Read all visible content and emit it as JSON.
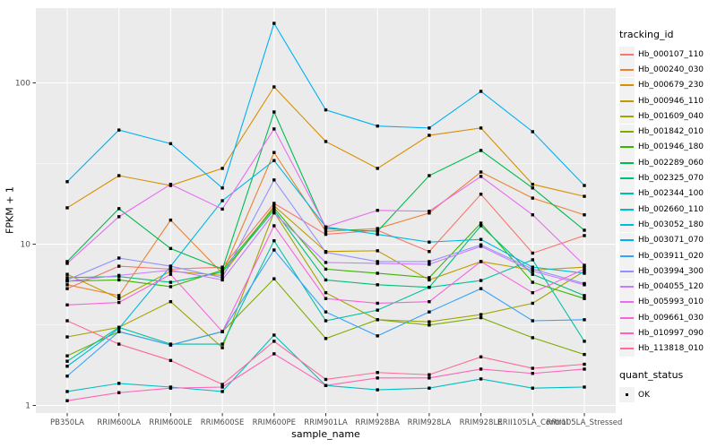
{
  "figure": {
    "background": "#FFFFFF",
    "panel_background": "#EBEBEB",
    "grid_color": "#FFFFFF",
    "tick_color": "#333333",
    "tick_label_color": "#4D4D4D"
  },
  "chart_data": {
    "type": "line",
    "title": "",
    "xlabel": "sample_name",
    "ylabel": "FPKM + 1",
    "y_scale": "log10",
    "ylim": [
      0.9,
      310
    ],
    "y_ticks": [
      1,
      10,
      100
    ],
    "grid": "major-white-on-gray with log minor lines",
    "legend_position": "right",
    "legend_title": "tracking_id",
    "marker": "small-black-square",
    "status_legend": {
      "title": "quant_status",
      "items": [
        {
          "label": "OK",
          "marker": "black-square"
        }
      ]
    },
    "x_categories": [
      "PB350LA",
      "RRIM600LA",
      "RRIM600LE",
      "RRIM600SE",
      "RRIM600PE",
      "RRIM901LA",
      "RRIM928BA",
      "RRIM928LA",
      "RRIM928LE",
      "RRII105LA_Control",
      "RRII105LA_Stressed"
    ],
    "series": [
      {
        "name": "Hb_000107_110",
        "color": "#F8766D",
        "values": [
          5.3,
          7.3,
          7.0,
          7.2,
          17.9,
          11.5,
          12.2,
          9.0,
          20.4,
          8.8,
          11.3
        ]
      },
      {
        "name": "Hb_000240_030",
        "color": "#EA8331",
        "values": [
          5.6,
          4.8,
          14.1,
          6.6,
          37,
          12.0,
          12.5,
          15.6,
          28.0,
          19.3,
          15.2
        ]
      },
      {
        "name": "Hb_000679_230",
        "color": "#D89000",
        "values": [
          16.8,
          26.6,
          23.1,
          29.5,
          94.4,
          43.3,
          29.5,
          47.3,
          52.5,
          23.5,
          19.8
        ]
      },
      {
        "name": "Hb_000946_110",
        "color": "#C09B00",
        "values": [
          6.5,
          4.6,
          6.8,
          6.4,
          17.3,
          9.0,
          9.1,
          6.0,
          7.8,
          6.9,
          7.2
        ]
      },
      {
        "name": "Hb_001609_040",
        "color": "#A3A500",
        "values": [
          2.66,
          3.05,
          4.4,
          2.28,
          15.8,
          5.0,
          3.4,
          3.3,
          3.66,
          4.3,
          6.8
        ]
      },
      {
        "name": "Hb_001842_010",
        "color": "#7CAE00",
        "values": [
          2.03,
          2.87,
          2.37,
          2.87,
          6.1,
          2.6,
          3.4,
          3.15,
          3.5,
          2.63,
          2.07
        ]
      },
      {
        "name": "Hb_001946_180",
        "color": "#39B600",
        "values": [
          5.9,
          6.0,
          5.45,
          6.9,
          16.8,
          7.0,
          6.6,
          6.2,
          13.5,
          5.8,
          4.6
        ]
      },
      {
        "name": "Hb_002289_060",
        "color": "#00BB4E",
        "values": [
          7.8,
          16.6,
          9.4,
          7.0,
          66,
          12.5,
          12.0,
          26.6,
          38.1,
          22.3,
          12.2
        ]
      },
      {
        "name": "Hb_002325_070",
        "color": "#00BF7D",
        "values": [
          6.2,
          6.3,
          5.8,
          6.7,
          16.3,
          6.0,
          5.6,
          5.4,
          13.0,
          6.5,
          4.8
        ]
      },
      {
        "name": "Hb_002344_100",
        "color": "#00C1A3",
        "values": [
          1.88,
          3.05,
          2.4,
          2.4,
          10.5,
          3.35,
          3.9,
          5.4,
          5.95,
          8.0,
          2.5
        ]
      },
      {
        "name": "Hb_002660_110",
        "color": "#00BFC4",
        "values": [
          1.22,
          1.37,
          1.3,
          1.22,
          2.73,
          1.33,
          1.25,
          1.28,
          1.46,
          1.28,
          1.3
        ]
      },
      {
        "name": "Hb_003052_180",
        "color": "#00BAE0",
        "values": [
          1.75,
          3.0,
          7.3,
          18.6,
          33,
          12.8,
          11.5,
          10.3,
          10.7,
          7.2,
          6.6
        ]
      },
      {
        "name": "Hb_003071_070",
        "color": "#00B0F6",
        "values": [
          24.4,
          51,
          42,
          22.3,
          234,
          68,
          54,
          52.5,
          88.6,
          49.8,
          23.1
        ]
      },
      {
        "name": "Hb_003911_020",
        "color": "#35A2FF",
        "values": [
          1.52,
          2.87,
          2.37,
          2.87,
          9.2,
          3.8,
          2.7,
          3.8,
          5.3,
          3.35,
          3.4
        ]
      },
      {
        "name": "Hb_003994_300",
        "color": "#9590FF",
        "values": [
          6.0,
          8.2,
          7.3,
          6.2,
          25,
          8.9,
          7.8,
          7.8,
          9.9,
          7.0,
          5.7
        ]
      },
      {
        "name": "Hb_004055_120",
        "color": "#C77CFF",
        "values": [
          5.9,
          6.4,
          6.9,
          6.0,
          15.6,
          7.7,
          7.6,
          7.5,
          9.7,
          6.8,
          5.6
        ]
      },
      {
        "name": "Hb_005993_010",
        "color": "#E76BF3",
        "values": [
          7.6,
          14.8,
          23.5,
          16.5,
          51.8,
          12.8,
          16.2,
          16.0,
          26.3,
          15.2,
          7.4
        ]
      },
      {
        "name": "Hb_009661_030",
        "color": "#FA62DB",
        "values": [
          4.2,
          4.35,
          6.5,
          2.87,
          13.0,
          4.6,
          4.3,
          4.4,
          7.8,
          5.0,
          7.0
        ]
      },
      {
        "name": "Hb_010997_090",
        "color": "#FF62BC",
        "values": [
          1.07,
          1.2,
          1.28,
          1.3,
          2.09,
          1.33,
          1.48,
          1.48,
          1.68,
          1.58,
          1.68
        ]
      },
      {
        "name": "Hb_113818_010",
        "color": "#FF6A98",
        "values": [
          3.35,
          2.4,
          1.9,
          1.35,
          2.5,
          1.45,
          1.6,
          1.55,
          2.0,
          1.7,
          1.8
        ]
      }
    ]
  }
}
